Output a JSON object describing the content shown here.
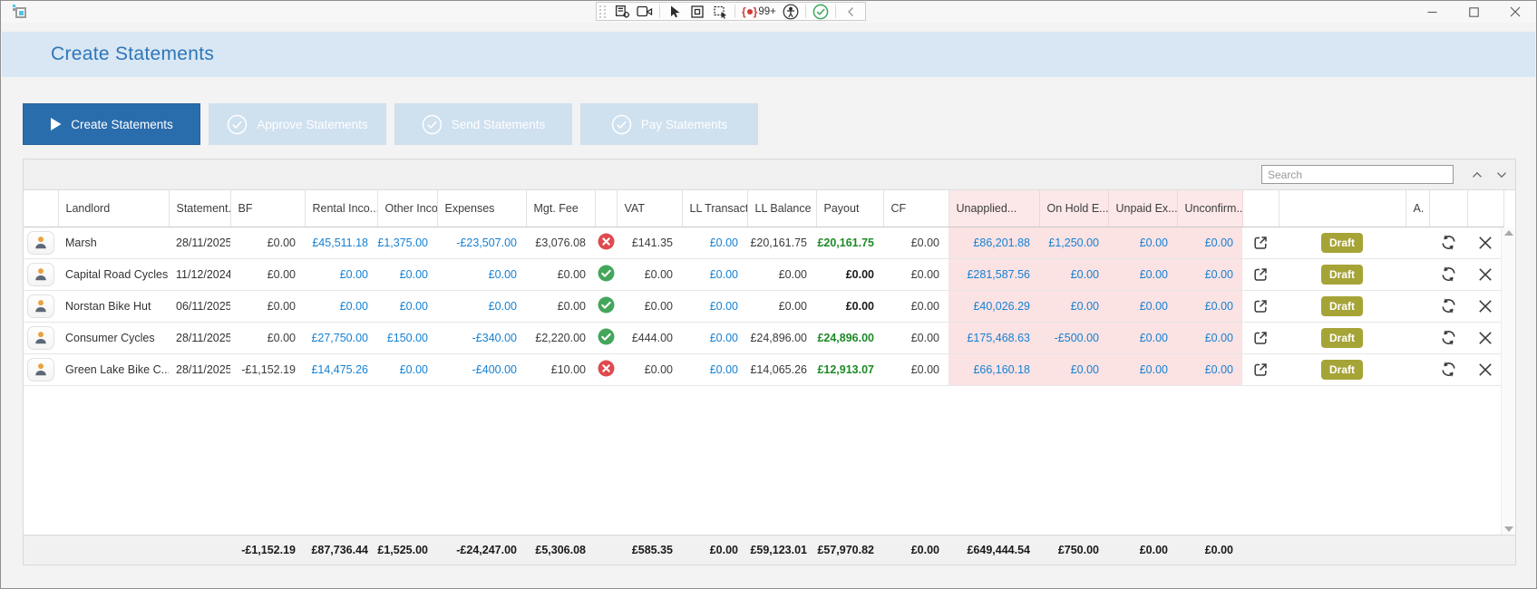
{
  "titlebar": {
    "record_badge": "99+",
    "toolbar_icons": [
      "grip",
      "form-settings-icon",
      "camera-icon",
      "select-pointer-icon",
      "frame-icon",
      "region-select-icon",
      "record-icon",
      "accessibility-icon",
      "success-icon",
      "collapse-icon"
    ]
  },
  "window_controls": [
    "minimize",
    "maximize",
    "close"
  ],
  "page": {
    "title": "Create Statements"
  },
  "workflow": [
    {
      "label": "Create Statements",
      "state": "active",
      "icon": "play-icon"
    },
    {
      "label": "Approve Statements",
      "state": "disabled",
      "icon": "check-circle-icon"
    },
    {
      "label": "Send Statements",
      "state": "disabled",
      "icon": "check-circle-icon"
    },
    {
      "label": "Pay Statements",
      "state": "disabled",
      "icon": "check-circle-icon"
    }
  ],
  "search": {
    "placeholder": "Search"
  },
  "colors": {
    "accent_blue": "#2e76b9",
    "link_blue": "#1581d3",
    "payout_green": "#1d8a27",
    "pink_bg": "#fbe2e3",
    "badge_olive": "#a6a437",
    "error_red": "#df4a4e",
    "ok_green": "#44a65a"
  },
  "grid": {
    "columns": [
      {
        "key": "avatar",
        "label": "",
        "type": "avatar"
      },
      {
        "key": "landlord",
        "label": "Landlord",
        "type": "text"
      },
      {
        "key": "statement_date",
        "label": "Statement...",
        "type": "text"
      },
      {
        "key": "bf",
        "label": "BF",
        "type": "money"
      },
      {
        "key": "rental_income",
        "label": "Rental Inco...",
        "type": "money"
      },
      {
        "key": "other_income",
        "label": "Other Inco...",
        "type": "money"
      },
      {
        "key": "expenses",
        "label": "Expenses",
        "type": "money"
      },
      {
        "key": "mgt_fee",
        "label": "Mgt. Fee",
        "type": "money"
      },
      {
        "key": "status",
        "label": "",
        "type": "status"
      },
      {
        "key": "vat",
        "label": "VAT",
        "type": "money"
      },
      {
        "key": "ll_transactions",
        "label": "LL Transact...",
        "type": "money"
      },
      {
        "key": "ll_balance",
        "label": "LL Balance",
        "type": "money"
      },
      {
        "key": "payout",
        "label": "Payout",
        "type": "money"
      },
      {
        "key": "cf",
        "label": "CF",
        "type": "money"
      },
      {
        "key": "unapplied",
        "label": "Unapplied...",
        "type": "money",
        "pink": true
      },
      {
        "key": "on_hold",
        "label": "On Hold E...",
        "type": "money",
        "pink": true
      },
      {
        "key": "unpaid",
        "label": "Unpaid Ex...",
        "type": "money",
        "pink": true
      },
      {
        "key": "unconfirmed",
        "label": "Unconfirm...",
        "type": "money",
        "pink": true
      },
      {
        "key": "open",
        "label": "",
        "type": "open"
      },
      {
        "key": "draft",
        "label": "",
        "type": "badge"
      },
      {
        "key": "a",
        "label": "A.",
        "type": "empty"
      },
      {
        "key": "refresh",
        "label": "",
        "type": "refresh"
      },
      {
        "key": "delete",
        "label": "",
        "type": "delete"
      }
    ],
    "rows": [
      {
        "landlord": "Marsh",
        "statement_date": "28/11/2025",
        "status": "error",
        "badge": "Draft",
        "cells": {
          "bf": {
            "t": "£0.00",
            "s": "plain"
          },
          "rental_income": {
            "t": "£45,511.18",
            "s": "link"
          },
          "other_income": {
            "t": "£1,375.00",
            "s": "link"
          },
          "expenses": {
            "t": "-£23,507.00",
            "s": "link"
          },
          "mgt_fee": {
            "t": "£3,076.08",
            "s": "plain"
          },
          "vat": {
            "t": "£141.35",
            "s": "plain"
          },
          "ll_transactions": {
            "t": "£0.00",
            "s": "link"
          },
          "ll_balance": {
            "t": "£20,161.75",
            "s": "plain"
          },
          "payout": {
            "t": "£20,161.75",
            "s": "green"
          },
          "cf": {
            "t": "£0.00",
            "s": "plain"
          },
          "unapplied": {
            "t": "£86,201.88",
            "s": "link"
          },
          "on_hold": {
            "t": "£1,250.00",
            "s": "link"
          },
          "unpaid": {
            "t": "£0.00",
            "s": "link"
          },
          "unconfirmed": {
            "t": "£0.00",
            "s": "link"
          }
        }
      },
      {
        "landlord": "Capital Road Cycles",
        "statement_date": "11/12/2024",
        "status": "ok",
        "badge": "Draft",
        "cells": {
          "bf": {
            "t": "£0.00",
            "s": "plain"
          },
          "rental_income": {
            "t": "£0.00",
            "s": "link"
          },
          "other_income": {
            "t": "£0.00",
            "s": "link"
          },
          "expenses": {
            "t": "£0.00",
            "s": "link"
          },
          "mgt_fee": {
            "t": "£0.00",
            "s": "plain"
          },
          "vat": {
            "t": "£0.00",
            "s": "plain"
          },
          "ll_transactions": {
            "t": "£0.00",
            "s": "link"
          },
          "ll_balance": {
            "t": "£0.00",
            "s": "plain"
          },
          "payout": {
            "t": "£0.00",
            "s": "bold"
          },
          "cf": {
            "t": "£0.00",
            "s": "plain"
          },
          "unapplied": {
            "t": "£281,587.56",
            "s": "link"
          },
          "on_hold": {
            "t": "£0.00",
            "s": "link"
          },
          "unpaid": {
            "t": "£0.00",
            "s": "link"
          },
          "unconfirmed": {
            "t": "£0.00",
            "s": "link"
          }
        }
      },
      {
        "landlord": "Norstan Bike Hut",
        "statement_date": "06/11/2025",
        "status": "ok",
        "badge": "Draft",
        "cells": {
          "bf": {
            "t": "£0.00",
            "s": "plain"
          },
          "rental_income": {
            "t": "£0.00",
            "s": "link"
          },
          "other_income": {
            "t": "£0.00",
            "s": "link"
          },
          "expenses": {
            "t": "£0.00",
            "s": "link"
          },
          "mgt_fee": {
            "t": "£0.00",
            "s": "plain"
          },
          "vat": {
            "t": "£0.00",
            "s": "plain"
          },
          "ll_transactions": {
            "t": "£0.00",
            "s": "link"
          },
          "ll_balance": {
            "t": "£0.00",
            "s": "plain"
          },
          "payout": {
            "t": "£0.00",
            "s": "bold"
          },
          "cf": {
            "t": "£0.00",
            "s": "plain"
          },
          "unapplied": {
            "t": "£40,026.29",
            "s": "link"
          },
          "on_hold": {
            "t": "£0.00",
            "s": "link"
          },
          "unpaid": {
            "t": "£0.00",
            "s": "link"
          },
          "unconfirmed": {
            "t": "£0.00",
            "s": "link"
          }
        }
      },
      {
        "landlord": "Consumer Cycles",
        "statement_date": "28/11/2025",
        "status": "ok",
        "badge": "Draft",
        "cells": {
          "bf": {
            "t": "£0.00",
            "s": "plain"
          },
          "rental_income": {
            "t": "£27,750.00",
            "s": "link"
          },
          "other_income": {
            "t": "£150.00",
            "s": "link"
          },
          "expenses": {
            "t": "-£340.00",
            "s": "link"
          },
          "mgt_fee": {
            "t": "£2,220.00",
            "s": "plain"
          },
          "vat": {
            "t": "£444.00",
            "s": "plain"
          },
          "ll_transactions": {
            "t": "£0.00",
            "s": "link"
          },
          "ll_balance": {
            "t": "£24,896.00",
            "s": "plain"
          },
          "payout": {
            "t": "£24,896.00",
            "s": "green"
          },
          "cf": {
            "t": "£0.00",
            "s": "plain"
          },
          "unapplied": {
            "t": "£175,468.63",
            "s": "link"
          },
          "on_hold": {
            "t": "-£500.00",
            "s": "link"
          },
          "unpaid": {
            "t": "£0.00",
            "s": "link"
          },
          "unconfirmed": {
            "t": "£0.00",
            "s": "link"
          }
        }
      },
      {
        "landlord": "Green Lake Bike C...",
        "statement_date": "28/11/2025",
        "status": "error",
        "badge": "Draft",
        "cells": {
          "bf": {
            "t": "-£1,152.19",
            "s": "plain"
          },
          "rental_income": {
            "t": "£14,475.26",
            "s": "link"
          },
          "other_income": {
            "t": "£0.00",
            "s": "link"
          },
          "expenses": {
            "t": "-£400.00",
            "s": "link"
          },
          "mgt_fee": {
            "t": "£10.00",
            "s": "plain"
          },
          "vat": {
            "t": "£0.00",
            "s": "plain"
          },
          "ll_transactions": {
            "t": "£0.00",
            "s": "link"
          },
          "ll_balance": {
            "t": "£14,065.26",
            "s": "plain"
          },
          "payout": {
            "t": "£12,913.07",
            "s": "green"
          },
          "cf": {
            "t": "£0.00",
            "s": "plain"
          },
          "unapplied": {
            "t": "£66,160.18",
            "s": "link"
          },
          "on_hold": {
            "t": "£0.00",
            "s": "link"
          },
          "unpaid": {
            "t": "£0.00",
            "s": "link"
          },
          "unconfirmed": {
            "t": "£0.00",
            "s": "link"
          }
        }
      }
    ],
    "totals": {
      "bf": "-£1,152.19",
      "rental_income": "£87,736.44",
      "other_income": "£1,525.00",
      "expenses": "-£24,247.00",
      "mgt_fee": "£5,306.08",
      "vat": "£585.35",
      "ll_transactions": "£0.00",
      "ll_balance": "£59,123.01",
      "payout": "£57,970.82",
      "cf": "£0.00",
      "unapplied": "£649,444.54",
      "on_hold": "£750.00",
      "unpaid": "£0.00",
      "unconfirmed": "£0.00"
    }
  }
}
